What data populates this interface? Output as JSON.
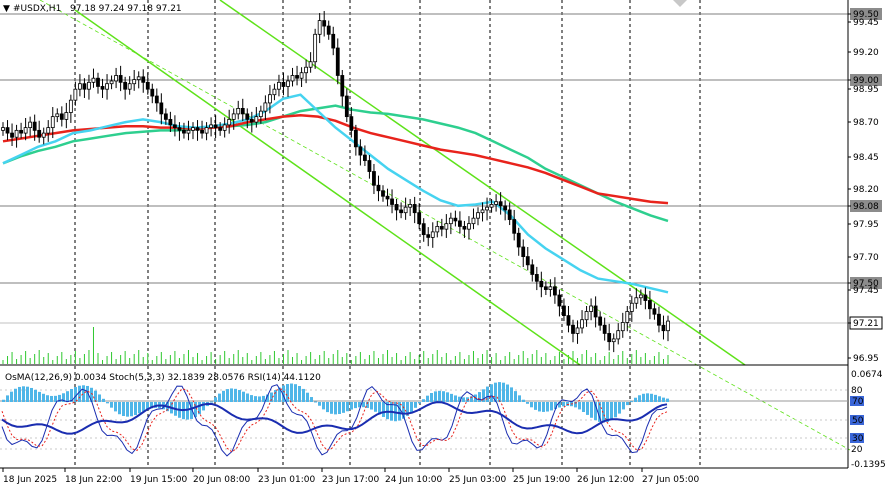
{
  "chart_data": {
    "type": "candlestick",
    "symbol_header": "#USDX,H1",
    "ohlc_text": "97.18 97.24 97.18 97.21",
    "price_ticks": [
      "99.50",
      "99.45",
      "99.20",
      "99.00",
      "98.95",
      "98.70",
      "98.45",
      "98.20",
      "98.08",
      "97.95",
      "97.70",
      "97.50",
      "97.45",
      "97.21",
      "96.95"
    ],
    "highlighted_prices": [
      "99.50",
      "99.00",
      "98.08",
      "97.50"
    ],
    "current_price": "97.21",
    "time_labels": [
      "18 Jun 2025",
      "18 Jun 22:00",
      "19 Jun 15:00",
      "20 Jun 08:00",
      "23 Jun 01:00",
      "23 Jun 17:00",
      "24 Jun 10:00",
      "25 Jun 03:00",
      "25 Jun 19:00",
      "26 Jun 12:00",
      "27 Jun 05:00"
    ],
    "price_range": [
      96.89,
      99.55
    ],
    "closes": [
      98.62,
      98.58,
      98.55,
      98.6,
      98.58,
      98.62,
      98.66,
      98.6,
      98.55,
      98.58,
      98.62,
      98.7,
      98.72,
      98.68,
      98.73,
      98.82,
      98.9,
      98.94,
      98.9,
      98.95,
      98.98,
      98.92,
      98.9,
      98.94,
      98.96,
      99.0,
      98.95,
      98.9,
      98.94,
      98.97,
      98.99,
      98.95,
      98.9,
      98.85,
      98.8,
      98.72,
      98.68,
      98.64,
      98.62,
      98.6,
      98.58,
      98.6,
      98.62,
      98.6,
      98.58,
      98.62,
      98.64,
      98.62,
      98.6,
      98.64,
      98.68,
      98.72,
      98.76,
      98.72,
      98.68,
      98.66,
      98.7,
      98.74,
      98.8,
      98.86,
      98.9,
      98.95,
      98.92,
      98.96,
      99.0,
      98.98,
      99.02,
      99.06,
      99.1,
      99.3,
      99.4,
      99.36,
      99.3,
      99.2,
      99.0,
      98.85,
      98.7,
      98.6,
      98.48,
      98.42,
      98.38,
      98.3,
      98.2,
      98.16,
      98.12,
      98.1,
      98.06,
      98.02,
      98.0,
      98.04,
      98.06,
      98.0,
      97.92,
      97.84,
      97.82,
      97.86,
      97.9,
      97.88,
      97.92,
      97.96,
      97.94,
      97.9,
      97.88,
      97.92,
      97.96,
      98.0,
      98.02,
      98.04,
      98.06,
      98.08,
      98.05,
      98.02,
      97.95,
      97.85,
      97.75,
      97.68,
      97.62,
      97.55,
      97.5,
      97.46,
      97.44,
      97.46,
      97.4,
      97.32,
      97.25,
      97.18,
      97.12,
      97.16,
      97.22,
      97.28,
      97.32,
      97.24,
      97.18,
      97.12,
      97.06,
      97.08,
      97.14,
      97.2,
      97.28,
      97.34,
      97.38,
      97.4,
      97.36,
      97.3,
      97.26,
      97.18,
      97.14,
      97.21
    ],
    "moving_averages": [
      {
        "color": "#2ecf8f",
        "values": [
          98.36,
          98.41,
          98.45,
          98.48,
          98.52,
          98.54,
          98.56,
          98.58,
          98.59,
          98.6,
          98.6,
          98.61,
          98.62,
          98.63,
          98.64,
          98.66,
          98.7,
          98.74,
          98.76,
          98.78,
          98.75,
          98.73,
          98.72,
          98.7,
          98.68,
          98.65,
          98.62,
          98.58,
          98.52,
          98.46,
          98.4,
          98.32,
          98.26,
          98.2,
          98.14,
          98.08,
          98.03,
          97.98,
          97.94
        ]
      },
      {
        "color": "#e8231c",
        "values": [
          98.52,
          98.54,
          98.56,
          98.58,
          98.6,
          98.61,
          98.62,
          98.63,
          98.63,
          98.62,
          98.62,
          98.61,
          98.62,
          98.63,
          98.66,
          98.68,
          98.7,
          98.71,
          98.7,
          98.67,
          98.62,
          98.58,
          98.55,
          98.52,
          98.49,
          98.46,
          98.44,
          98.42,
          98.39,
          98.36,
          98.33,
          98.29,
          98.24,
          98.19,
          98.14,
          98.12,
          98.1,
          98.08,
          98.07
        ]
      },
      {
        "color": "#46d3f0",
        "values": [
          98.36,
          98.42,
          98.48,
          98.52,
          98.58,
          98.6,
          98.63,
          98.66,
          98.68,
          98.66,
          98.63,
          98.62,
          98.63,
          98.65,
          98.68,
          98.74,
          98.83,
          98.86,
          98.74,
          98.62,
          98.52,
          98.42,
          98.32,
          98.24,
          98.16,
          98.09,
          98.05,
          98.06,
          98.08,
          97.98,
          97.84,
          97.74,
          97.66,
          97.58,
          97.52,
          97.5,
          97.48,
          97.45,
          97.42
        ]
      }
    ],
    "channel_lines": [
      "#5ee21a",
      "#5ee21a",
      "#5ee21a"
    ],
    "indicator_text": "OsMA(12,26,9) 0.0034  Stoch(5,3,3) 32.1839 28.0576  RSI(14) 44.1120",
    "indicator_ticks": [
      "0.0674",
      "80",
      "70",
      "50",
      "30",
      "20",
      "-0.1395"
    ],
    "indicator_badges": [
      {
        "text": "70",
        "color": "#3a66d8"
      },
      {
        "text": "50",
        "color": "#3a66d8"
      },
      {
        "text": "30",
        "color": "#3a66d8"
      }
    ]
  }
}
